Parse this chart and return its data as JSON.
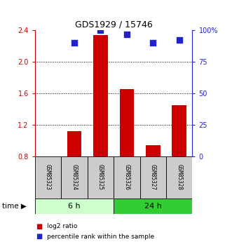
{
  "title": "GDS1929 / 15746",
  "samples": [
    "GSM85323",
    "GSM85324",
    "GSM85325",
    "GSM85326",
    "GSM85327",
    "GSM85328"
  ],
  "log2_ratio": [
    0.8,
    1.12,
    2.34,
    1.65,
    0.94,
    1.45
  ],
  "percentile_rank": [
    null,
    90.0,
    100.0,
    97.0,
    90.0,
    92.0
  ],
  "ylim_left": [
    0.8,
    2.4
  ],
  "ylim_right": [
    0,
    100
  ],
  "yticks_left": [
    0.8,
    1.2,
    1.6,
    2.0,
    2.4
  ],
  "yticks_right": [
    0,
    25,
    50,
    75,
    100
  ],
  "ytick_labels_right": [
    "0",
    "25",
    "50",
    "75",
    "100%"
  ],
  "bar_color": "#cc0000",
  "dot_color": "#2222cc",
  "baseline": 0.8,
  "group1_label": "6 h",
  "group2_label": "24 h",
  "group1_indices": [
    0,
    1,
    2
  ],
  "group2_indices": [
    3,
    4,
    5
  ],
  "group1_color": "#ccffcc",
  "group2_color": "#33cc33",
  "sample_box_color": "#cccccc",
  "legend_red_label": "log2 ratio",
  "legend_blue_label": "percentile rank within the sample",
  "time_label": "time",
  "axis_color_left": "#cc0000",
  "axis_color_right": "#2222cc",
  "bar_width": 0.55,
  "dot_size": 28
}
